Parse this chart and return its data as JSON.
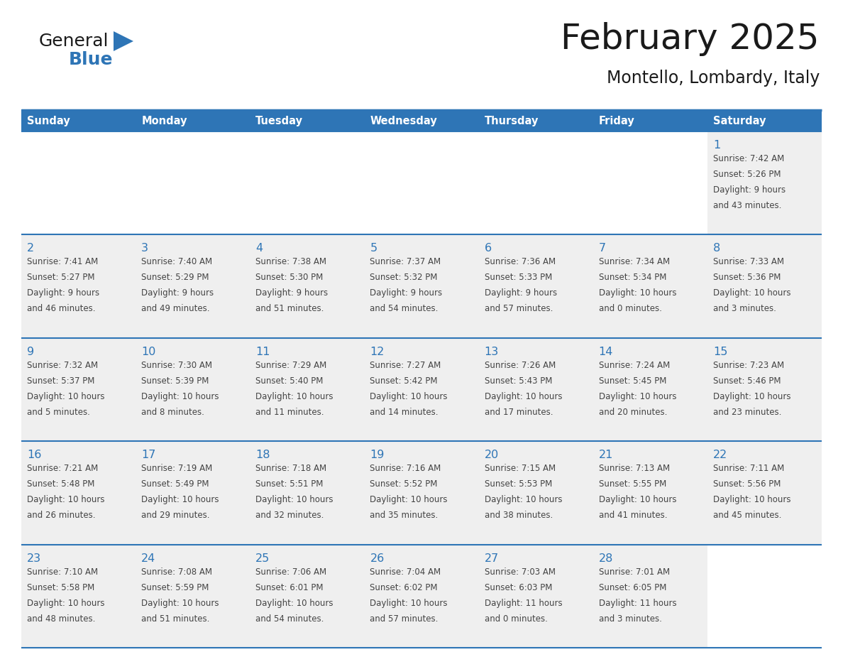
{
  "title": "February 2025",
  "subtitle": "Montello, Lombardy, Italy",
  "days_of_week": [
    "Sunday",
    "Monday",
    "Tuesday",
    "Wednesday",
    "Thursday",
    "Friday",
    "Saturday"
  ],
  "header_bg": "#2E75B6",
  "header_text": "#FFFFFF",
  "cell_bg": "#EFEFEF",
  "empty_cell_bg": "#FFFFFF",
  "border_color": "#2E75B6",
  "day_number_color": "#2E75B6",
  "text_color": "#444444",
  "title_color": "#1a1a1a",
  "logo_black": "#1a1a1a",
  "logo_blue": "#2E75B6",
  "weeks": [
    [
      null,
      null,
      null,
      null,
      null,
      null,
      1
    ],
    [
      2,
      3,
      4,
      5,
      6,
      7,
      8
    ],
    [
      9,
      10,
      11,
      12,
      13,
      14,
      15
    ],
    [
      16,
      17,
      18,
      19,
      20,
      21,
      22
    ],
    [
      23,
      24,
      25,
      26,
      27,
      28,
      null
    ]
  ],
  "cell_data": {
    "1": {
      "sunrise": "7:42 AM",
      "sunset": "5:26 PM",
      "daylight": "9 hours and 43 minutes."
    },
    "2": {
      "sunrise": "7:41 AM",
      "sunset": "5:27 PM",
      "daylight": "9 hours and 46 minutes."
    },
    "3": {
      "sunrise": "7:40 AM",
      "sunset": "5:29 PM",
      "daylight": "9 hours and 49 minutes."
    },
    "4": {
      "sunrise": "7:38 AM",
      "sunset": "5:30 PM",
      "daylight": "9 hours and 51 minutes."
    },
    "5": {
      "sunrise": "7:37 AM",
      "sunset": "5:32 PM",
      "daylight": "9 hours and 54 minutes."
    },
    "6": {
      "sunrise": "7:36 AM",
      "sunset": "5:33 PM",
      "daylight": "9 hours and 57 minutes."
    },
    "7": {
      "sunrise": "7:34 AM",
      "sunset": "5:34 PM",
      "daylight": "10 hours and 0 minutes."
    },
    "8": {
      "sunrise": "7:33 AM",
      "sunset": "5:36 PM",
      "daylight": "10 hours and 3 minutes."
    },
    "9": {
      "sunrise": "7:32 AM",
      "sunset": "5:37 PM",
      "daylight": "10 hours and 5 minutes."
    },
    "10": {
      "sunrise": "7:30 AM",
      "sunset": "5:39 PM",
      "daylight": "10 hours and 8 minutes."
    },
    "11": {
      "sunrise": "7:29 AM",
      "sunset": "5:40 PM",
      "daylight": "10 hours and 11 minutes."
    },
    "12": {
      "sunrise": "7:27 AM",
      "sunset": "5:42 PM",
      "daylight": "10 hours and 14 minutes."
    },
    "13": {
      "sunrise": "7:26 AM",
      "sunset": "5:43 PM",
      "daylight": "10 hours and 17 minutes."
    },
    "14": {
      "sunrise": "7:24 AM",
      "sunset": "5:45 PM",
      "daylight": "10 hours and 20 minutes."
    },
    "15": {
      "sunrise": "7:23 AM",
      "sunset": "5:46 PM",
      "daylight": "10 hours and 23 minutes."
    },
    "16": {
      "sunrise": "7:21 AM",
      "sunset": "5:48 PM",
      "daylight": "10 hours and 26 minutes."
    },
    "17": {
      "sunrise": "7:19 AM",
      "sunset": "5:49 PM",
      "daylight": "10 hours and 29 minutes."
    },
    "18": {
      "sunrise": "7:18 AM",
      "sunset": "5:51 PM",
      "daylight": "10 hours and 32 minutes."
    },
    "19": {
      "sunrise": "7:16 AM",
      "sunset": "5:52 PM",
      "daylight": "10 hours and 35 minutes."
    },
    "20": {
      "sunrise": "7:15 AM",
      "sunset": "5:53 PM",
      "daylight": "10 hours and 38 minutes."
    },
    "21": {
      "sunrise": "7:13 AM",
      "sunset": "5:55 PM",
      "daylight": "10 hours and 41 minutes."
    },
    "22": {
      "sunrise": "7:11 AM",
      "sunset": "5:56 PM",
      "daylight": "10 hours and 45 minutes."
    },
    "23": {
      "sunrise": "7:10 AM",
      "sunset": "5:58 PM",
      "daylight": "10 hours and 48 minutes."
    },
    "24": {
      "sunrise": "7:08 AM",
      "sunset": "5:59 PM",
      "daylight": "10 hours and 51 minutes."
    },
    "25": {
      "sunrise": "7:06 AM",
      "sunset": "6:01 PM",
      "daylight": "10 hours and 54 minutes."
    },
    "26": {
      "sunrise": "7:04 AM",
      "sunset": "6:02 PM",
      "daylight": "10 hours and 57 minutes."
    },
    "27": {
      "sunrise": "7:03 AM",
      "sunset": "6:03 PM",
      "daylight": "11 hours and 0 minutes."
    },
    "28": {
      "sunrise": "7:01 AM",
      "sunset": "6:05 PM",
      "daylight": "11 hours and 3 minutes."
    }
  }
}
